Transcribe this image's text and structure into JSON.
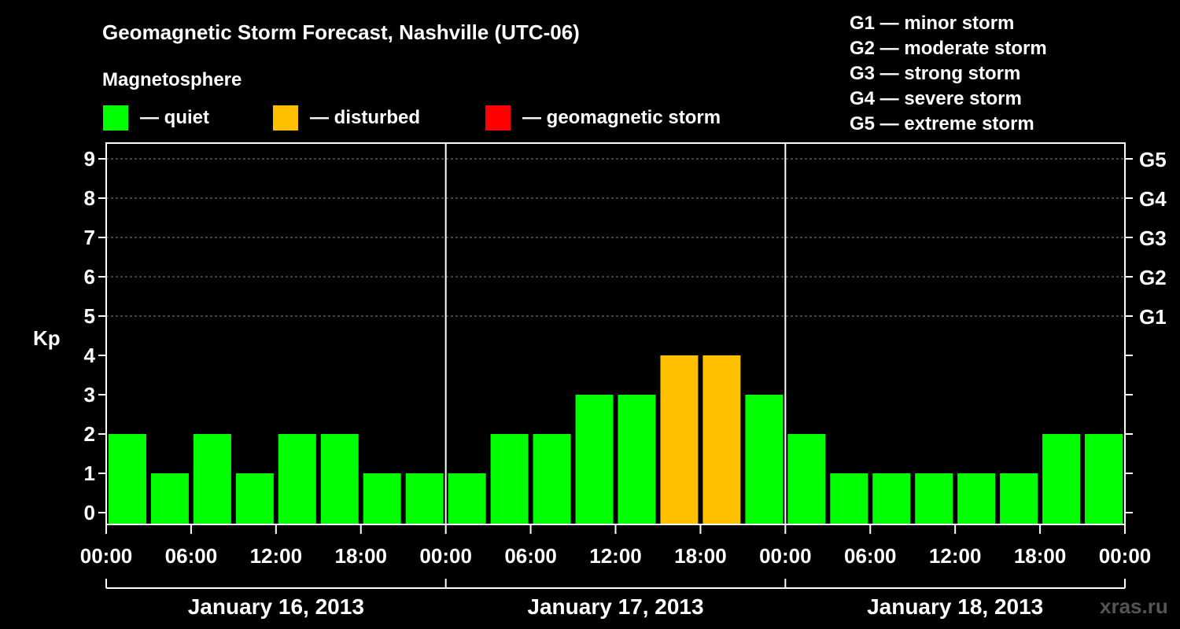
{
  "title": "Geomagnetic Storm Forecast, Nashville (UTC-06)",
  "legend": {
    "heading": "Magnetosphere",
    "items": [
      {
        "label": "— quiet",
        "color": "#00ff00"
      },
      {
        "label": "— disturbed",
        "color": "#ffc000"
      },
      {
        "label": "— geomagnetic storm",
        "color": "#ff0000"
      }
    ]
  },
  "storm_scale": [
    "G1 — minor storm",
    "G2 — moderate storm",
    "G3 — strong storm",
    "G4 — severe storm",
    "G5 — extreme storm"
  ],
  "watermark": "xras.ru",
  "chart_data": {
    "type": "bar",
    "ylabel": "Kp",
    "ylim": [
      0,
      9
    ],
    "y_ticks": [
      "0",
      "1",
      "2",
      "3",
      "4",
      "5",
      "6",
      "7",
      "8",
      "9"
    ],
    "right_axis_labels": [
      {
        "kp": 5,
        "label": "G1"
      },
      {
        "kp": 6,
        "label": "G2"
      },
      {
        "kp": 7,
        "label": "G3"
      },
      {
        "kp": 8,
        "label": "G4"
      },
      {
        "kp": 9,
        "label": "G5"
      }
    ],
    "x_ticks": [
      "00:00",
      "06:00",
      "12:00",
      "18:00",
      "00:00",
      "06:00",
      "12:00",
      "18:00",
      "00:00",
      "06:00",
      "12:00",
      "18:00",
      "00:00"
    ],
    "days": [
      "January 16, 2013",
      "January 17, 2013",
      "January 18, 2013"
    ],
    "values": [
      2,
      1,
      2,
      1,
      2,
      2,
      1,
      1,
      1,
      2,
      2,
      3,
      3,
      4,
      4,
      3,
      2,
      1,
      1,
      1,
      1,
      1,
      2,
      2
    ],
    "status": [
      "quiet",
      "quiet",
      "quiet",
      "quiet",
      "quiet",
      "quiet",
      "quiet",
      "quiet",
      "quiet",
      "quiet",
      "quiet",
      "quiet",
      "quiet",
      "disturbed",
      "disturbed",
      "quiet",
      "quiet",
      "quiet",
      "quiet",
      "quiet",
      "quiet",
      "quiet",
      "quiet",
      "quiet"
    ],
    "status_colors": {
      "quiet": "#00ff00",
      "disturbed": "#ffc000",
      "storm": "#ff0000"
    },
    "grid": "dashed at Kp 5–9"
  }
}
